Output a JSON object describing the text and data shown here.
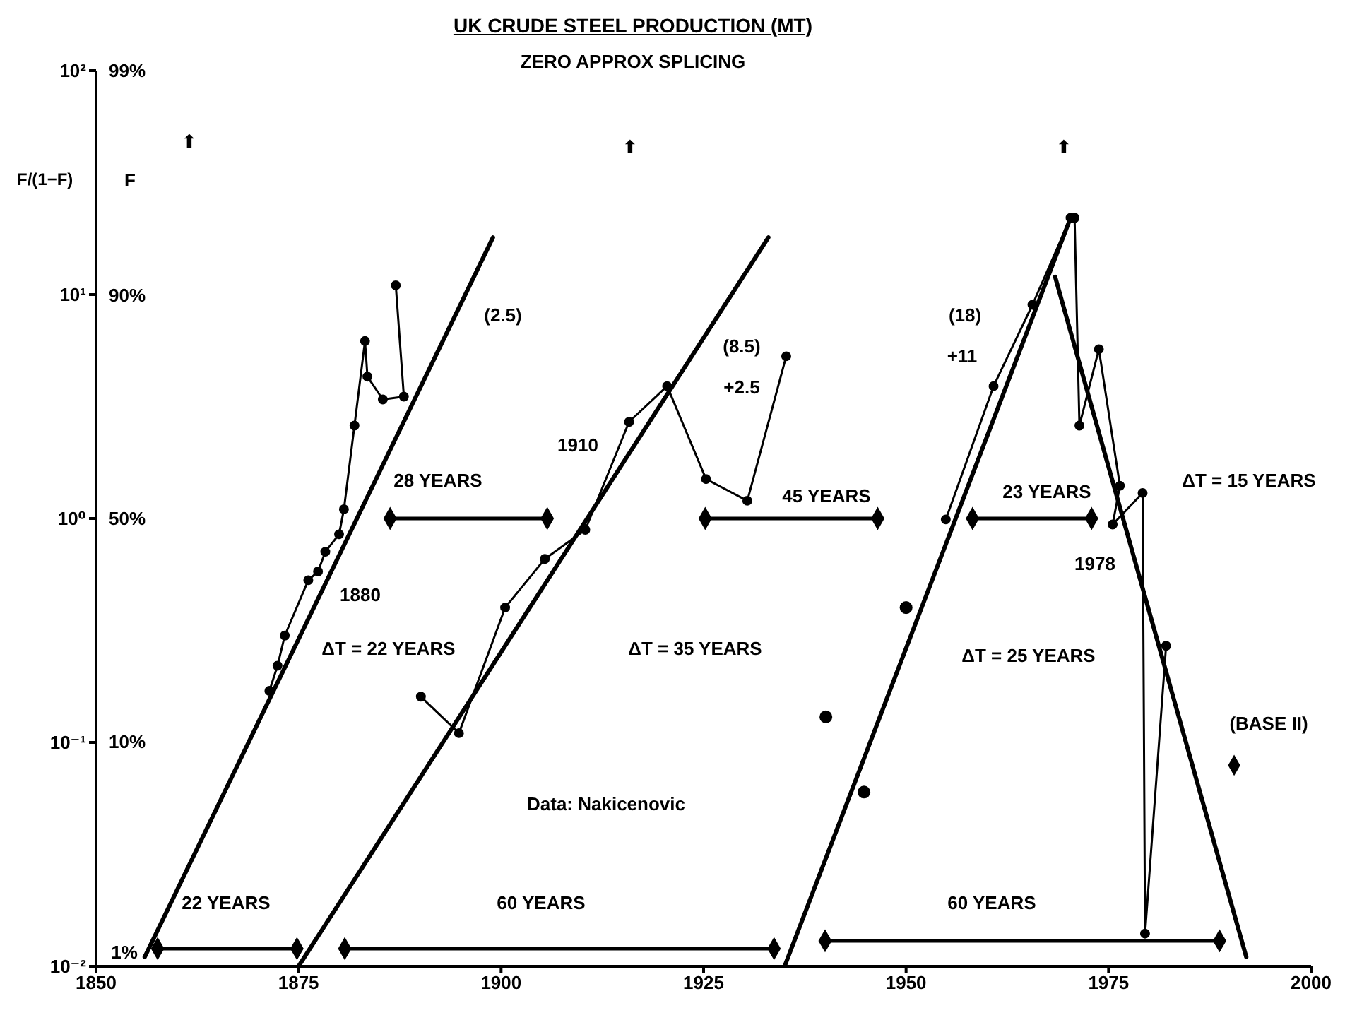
{
  "chart_data": {
    "type": "line",
    "title": "UK CRUDE STEEL PRODUCTION (MT)",
    "subtitle": "ZERO APPROX SPLICING",
    "ylabel": "F/(1−F)",
    "y2label": "F",
    "log": "y",
    "xlim": [
      1850,
      2000
    ],
    "xticks": [
      1850,
      1875,
      1900,
      1925,
      1950,
      1975,
      2000
    ],
    "ylim": [
      0.01,
      100
    ],
    "yticks": [
      {
        "value": 0.01,
        "label": "10⁻²"
      },
      {
        "value": 0.1,
        "label": "10⁻¹"
      },
      {
        "value": 1,
        "label": "10⁰"
      },
      {
        "value": 10,
        "label": "10¹"
      },
      {
        "value": 100,
        "label": "10²"
      }
    ],
    "series": [
      {
        "marker": "circle",
        "color": "#000000",
        "x": [
          1871.4,
          1872.4,
          1873.3,
          1876.2,
          1877.4,
          1878.3,
          1880.0,
          1880.6,
          1881.9,
          1883.2,
          1883.5,
          1885.4,
          1888.0,
          1887.0
        ],
        "values": [
          0.17,
          0.22,
          0.3,
          0.53,
          0.58,
          0.71,
          0.85,
          1.1,
          2.6,
          6.2,
          4.3,
          3.4,
          3.5,
          11
        ]
      },
      {
        "marker": "circle",
        "color": "#000000",
        "x": [
          1890.1,
          1894.8,
          1900.5,
          1905.4,
          1910.4,
          1915.8,
          1920.5,
          1925.3,
          1930.4,
          1935.2
        ],
        "values": [
          0.16,
          0.11,
          0.4,
          0.66,
          0.89,
          2.7,
          3.9,
          1.5,
          1.2,
          5.3
        ]
      },
      {
        "type": "scatter",
        "marker": "circle",
        "color": "#000000",
        "x": [
          1940.1,
          1944.8,
          1950.0
        ],
        "values": [
          0.13,
          0.06,
          0.4
        ]
      },
      {
        "marker": "circle",
        "color": "#000000",
        "x": [
          1954.9,
          1960.8,
          1965.6,
          1970.3,
          1970.8,
          1971.4,
          1973.8,
          1976.4,
          1975.5,
          1979.2,
          1979.5,
          1982.1
        ],
        "values": [
          0.99,
          3.9,
          9,
          22,
          22,
          2.6,
          5.7,
          1.4,
          0.94,
          1.3,
          0.014,
          0.27
        ]
      },
      {
        "type": "scatter",
        "marker": "diamond",
        "color": "#000000",
        "x": [
          1990.5
        ],
        "values": [
          0.079
        ]
      },
      {
        "marker": "none",
        "color": "#000000",
        "x": [
          1856,
          1899
        ],
        "values": [
          0.011,
          18
        ]
      },
      {
        "marker": "none",
        "color": "#000000",
        "x": [
          1875,
          1933
        ],
        "values": [
          0.01,
          18
        ]
      },
      {
        "marker": "none",
        "color": "#000000",
        "x": [
          1935,
          1970.3
        ],
        "values": [
          0.01,
          22
        ]
      },
      {
        "marker": "none",
        "color": "#000000",
        "x": [
          1968.4,
          1992
        ],
        "values": [
          12,
          0.011
        ]
      },
      {
        "marker": "diamond",
        "color": "#000000",
        "x": [
          1857.6,
          1874.8
        ],
        "values": [
          0.012,
          0.012
        ]
      },
      {
        "marker": "diamond",
        "color": "#000000",
        "x": [
          1886.3,
          1905.7
        ],
        "values": [
          1,
          1
        ]
      },
      {
        "marker": "diamond",
        "color": "#000000",
        "x": [
          1925.2,
          1946.5
        ],
        "values": [
          1,
          1
        ]
      },
      {
        "marker": "diamond",
        "color": "#000000",
        "x": [
          1958.2,
          1972.9
        ],
        "values": [
          1,
          1
        ]
      },
      {
        "marker": "diamond",
        "color": "#000000",
        "x": [
          1880.7,
          1933.7
        ],
        "values": [
          0.012,
          0.012
        ]
      },
      {
        "marker": "diamond",
        "color": "#000000",
        "x": [
          1940,
          1988.7
        ],
        "values": [
          0.013,
          0.013
        ]
      }
    ],
    "annotations": [
      "(2.5)",
      "28 YEARS",
      "1880",
      "ΔT = 22 YEARS",
      "1910",
      "(8.5)",
      "+2.5",
      "45 YEARS",
      "ΔT = 35 YEARS",
      "(18)",
      "+11",
      "23 YEARS",
      "1978",
      "ΔT = 15 YEARS",
      "ΔT = 25 YEARS",
      "(BASE II)",
      "Data: Nakicenovic",
      "22 YEARS",
      "60 YEARS",
      "60 YEARS",
      "⬆",
      "⬆",
      "⬆",
      "99%",
      "90%",
      "50%",
      "10%",
      "1%"
    ]
  }
}
